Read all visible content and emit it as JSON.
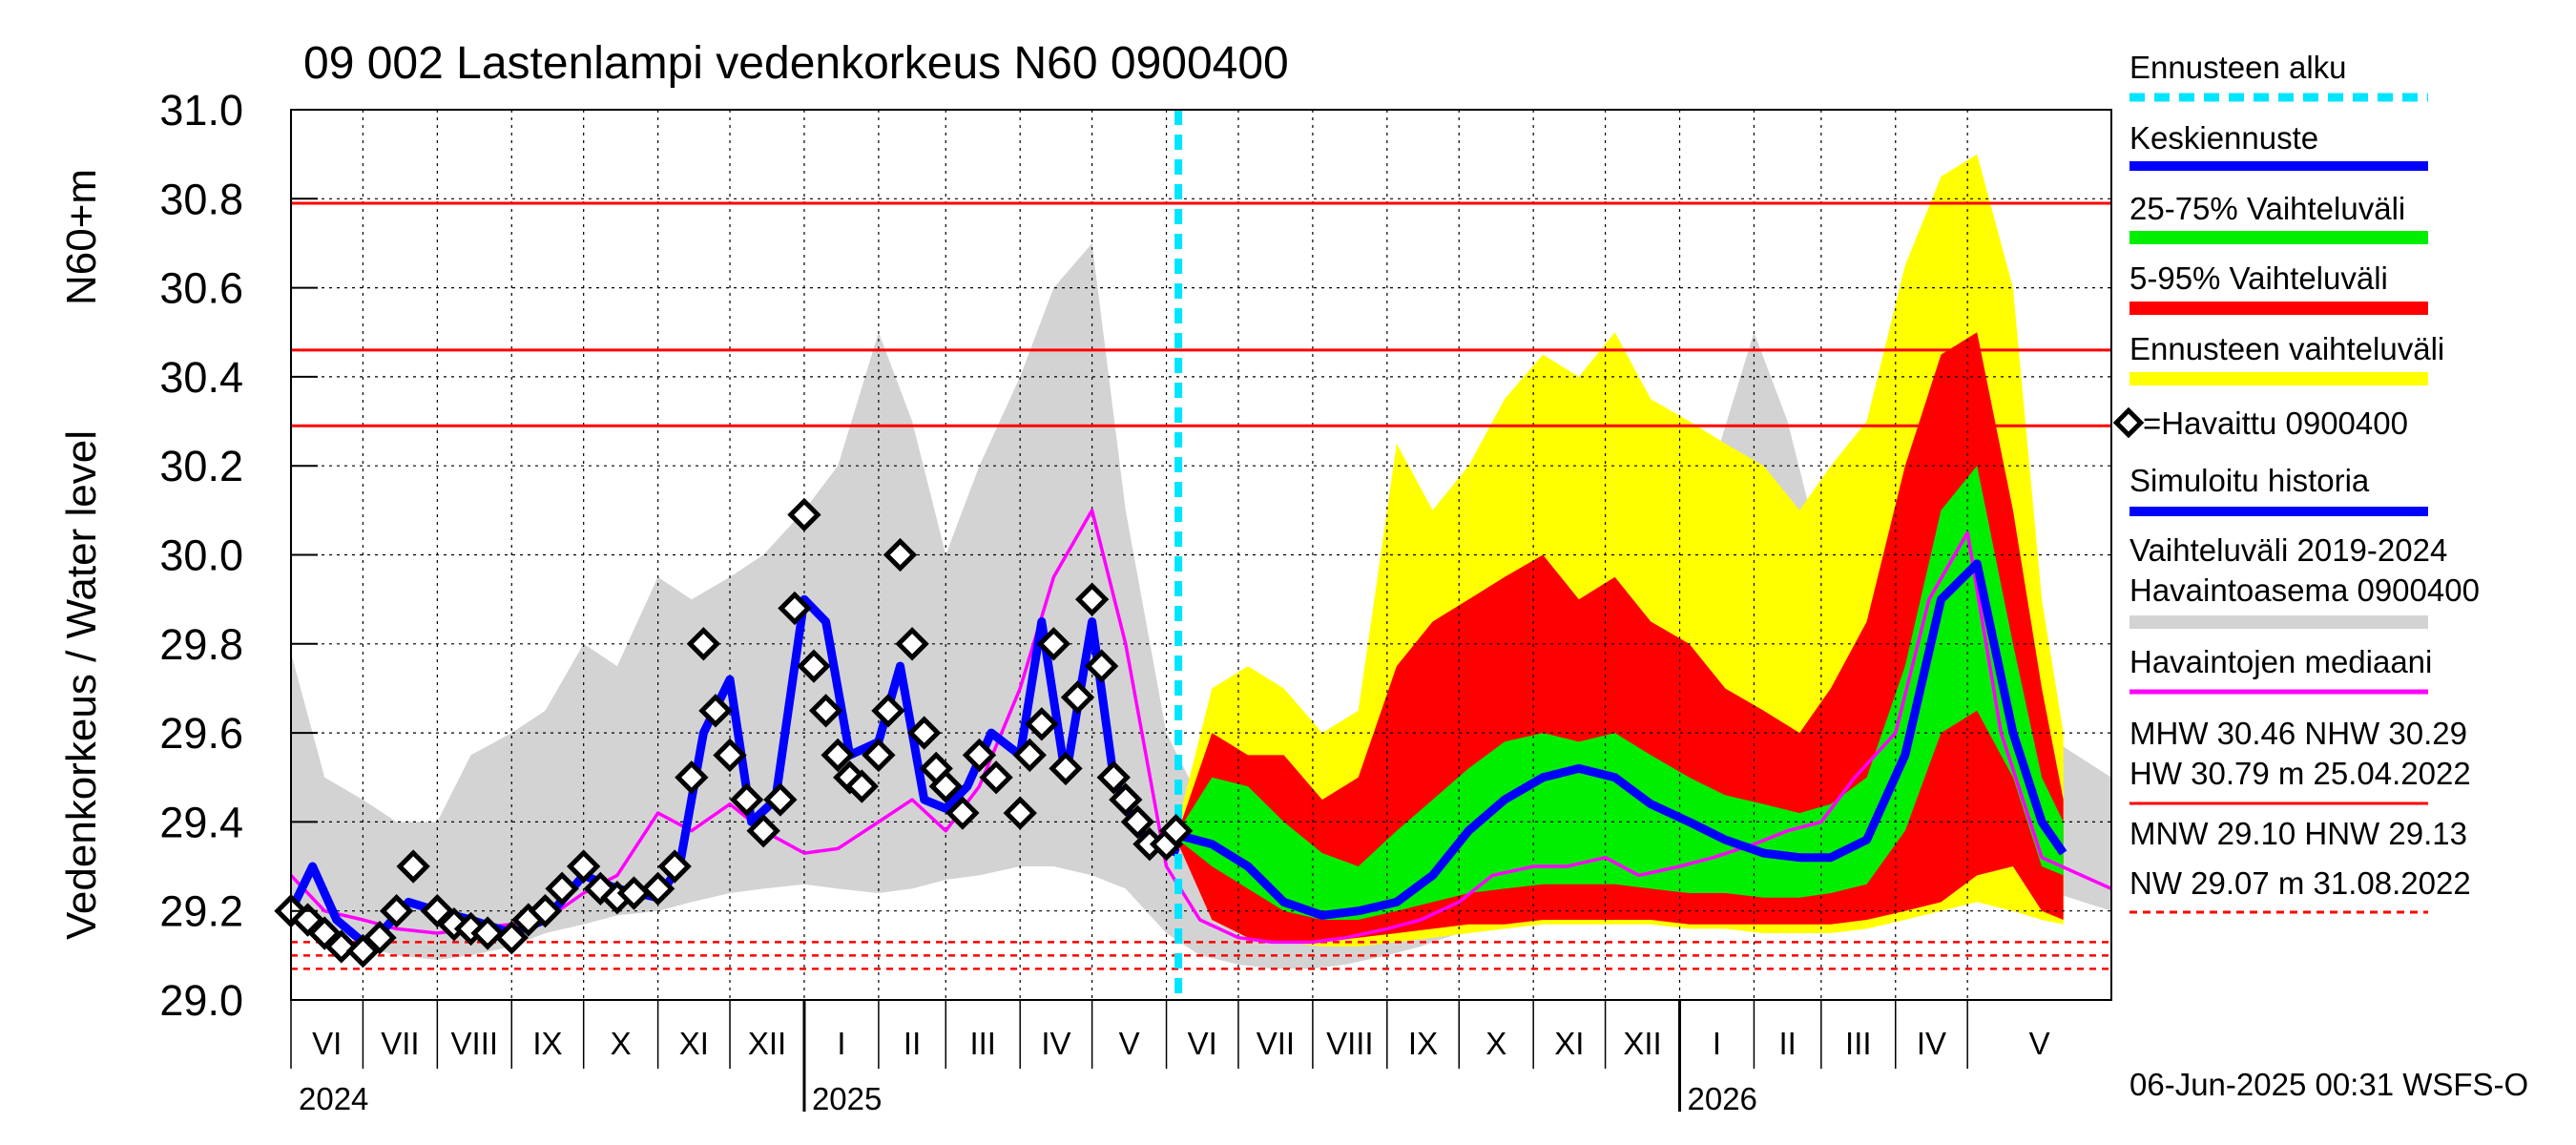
{
  "title": "09 002 Lastenlampi vedenkorkeus N60 0900400",
  "ylabel_left": "Vedenkorkeus / Water level",
  "ylabel_unit": "N60+m",
  "footer": "06-Jun-2025 00:31 WSFS-O",
  "legend": {
    "ennusteen_alku": "Ennusteen alku",
    "keskiennuste": "Keskiennuste",
    "p25_75": "25-75% Vaihteluväli",
    "p5_95": "5-95% Vaihteluväli",
    "ennusteen_vaihteluvali": "Ennusteen vaihteluväli",
    "havaittu": "=Havaittu 0900400",
    "simuloitu": "Simuloitu historia",
    "hist_range_1": "Vaihteluväli 2019-2024",
    "hist_range_2": " Havaintoasema 0900400",
    "median": "Havaintojen mediaani"
  },
  "stats": {
    "line1": "MHW  30.46 NHW  30.29",
    "line2": "HW  30.79 m 25.04.2022",
    "line3": "MNW  29.10 HNW  29.13",
    "line4": "NW  29.07 m 31.08.2022"
  },
  "colors": {
    "observed": "#000000",
    "simulated": "#0000ff",
    "median": "#ff00ff",
    "hist_range": "#d3d3d3",
    "p5_95": "#ff0000",
    "p25_75": "#00ee00",
    "forecast_range": "#ffff00",
    "forecast_start": "#00e5ff",
    "ref_high": "#ff0000",
    "ref_low": "#ff0000"
  },
  "chart_data": {
    "type": "line",
    "title": "09 002 Lastenlampi vedenkorkeus N60 0900400",
    "xlabel": "",
    "ylabel": "Vedenkorkeus / Water level N60+m",
    "x_range": [
      "2024-06-01",
      "2026-06-30"
    ],
    "ylim": [
      29.0,
      31.0
    ],
    "yticks": [
      "29.0",
      "29.2",
      "29.4",
      "29.6",
      "29.8",
      "30.0",
      "30.2",
      "30.4",
      "30.6",
      "30.8",
      "31.0"
    ],
    "grid": true,
    "legend_position": "right",
    "forecast_start": "2025-06-06",
    "months": [
      {
        "label": "VI",
        "start": "2024-06-01"
      },
      {
        "label": "VII",
        "start": "2024-07-01"
      },
      {
        "label": "VIII",
        "start": "2024-08-01"
      },
      {
        "label": "IX",
        "start": "2024-09-01"
      },
      {
        "label": "X",
        "start": "2024-10-01"
      },
      {
        "label": "XI",
        "start": "2024-11-01"
      },
      {
        "label": "XII",
        "start": "2024-12-01"
      },
      {
        "label": "I",
        "start": "2025-01-01"
      },
      {
        "label": "II",
        "start": "2025-02-01"
      },
      {
        "label": "III",
        "start": "2025-03-01"
      },
      {
        "label": "IV",
        "start": "2025-04-01"
      },
      {
        "label": "V",
        "start": "2025-05-01"
      },
      {
        "label": "VI",
        "start": "2025-06-01"
      },
      {
        "label": "VII",
        "start": "2025-07-01"
      },
      {
        "label": "VIII",
        "start": "2025-08-01"
      },
      {
        "label": "IX",
        "start": "2025-09-01"
      },
      {
        "label": "X",
        "start": "2025-10-01"
      },
      {
        "label": "XI",
        "start": "2025-11-01"
      },
      {
        "label": "XII",
        "start": "2025-12-01"
      },
      {
        "label": "I",
        "start": "2026-01-01"
      },
      {
        "label": "II",
        "start": "2026-02-01"
      },
      {
        "label": "III",
        "start": "2026-03-01"
      },
      {
        "label": "IV",
        "start": "2026-04-01"
      },
      {
        "label": "V",
        "start": "2026-05-01"
      }
    ],
    "years": [
      {
        "label": "2024",
        "date": "2024-06-01"
      },
      {
        "label": "2025",
        "date": "2025-01-01"
      },
      {
        "label": "2026",
        "date": "2026-01-01"
      }
    ],
    "reference_lines": [
      {
        "name": "HW",
        "value": 30.79,
        "style": "solid"
      },
      {
        "name": "MHW",
        "value": 30.46,
        "style": "solid"
      },
      {
        "name": "NHW",
        "value": 30.29,
        "style": "solid"
      },
      {
        "name": "HNW",
        "value": 29.13,
        "style": "dashed"
      },
      {
        "name": "MNW",
        "value": 29.1,
        "style": "dashed"
      },
      {
        "name": "NW",
        "value": 29.07,
        "style": "dashed"
      }
    ],
    "series": [
      {
        "name": "Vaihteluväli 2019-2024 Havaintoasema 0900400",
        "kind": "band",
        "x": [
          "2024-06-01",
          "2024-06-15",
          "2024-07-01",
          "2024-07-15",
          "2024-08-01",
          "2024-08-15",
          "2024-09-01",
          "2024-09-15",
          "2024-10-01",
          "2024-10-15",
          "2024-11-01",
          "2024-11-15",
          "2024-12-01",
          "2024-12-15",
          "2025-01-01",
          "2025-01-15",
          "2025-02-01",
          "2025-02-15",
          "2025-03-01",
          "2025-03-15",
          "2025-04-01",
          "2025-04-15",
          "2025-05-01",
          "2025-05-15",
          "2025-06-01",
          "2025-06-15",
          "2025-07-01",
          "2025-07-15",
          "2025-08-01",
          "2025-08-15",
          "2025-09-01",
          "2025-09-15",
          "2025-10-01",
          "2025-10-15",
          "2025-11-01",
          "2025-11-15",
          "2025-12-01",
          "2025-12-15",
          "2026-01-01",
          "2026-01-15",
          "2026-02-01",
          "2026-02-15",
          "2026-03-01",
          "2026-03-15",
          "2026-04-01",
          "2026-04-15",
          "2026-05-01",
          "2026-05-15",
          "2026-06-01",
          "2026-06-30"
        ],
        "lower": [
          29.22,
          29.18,
          29.12,
          29.1,
          29.09,
          29.1,
          29.12,
          29.15,
          29.17,
          29.19,
          29.2,
          29.22,
          29.24,
          29.25,
          29.26,
          29.25,
          29.24,
          29.25,
          29.27,
          29.28,
          29.3,
          29.3,
          29.28,
          29.25,
          29.15,
          29.1,
          29.08,
          29.07,
          29.07,
          29.08,
          29.1,
          29.12,
          29.15,
          29.17,
          29.18,
          29.2,
          29.22,
          29.23,
          29.24,
          29.23,
          29.22,
          29.21,
          29.22,
          29.25,
          29.3,
          29.38,
          29.45,
          29.35,
          29.25,
          29.2
        ],
        "upper": [
          29.78,
          29.5,
          29.45,
          29.4,
          29.4,
          29.55,
          29.6,
          29.65,
          29.8,
          29.75,
          29.95,
          29.9,
          29.95,
          30.0,
          30.1,
          30.2,
          30.5,
          30.3,
          30.0,
          30.2,
          30.4,
          30.6,
          30.7,
          30.1,
          29.6,
          29.45,
          29.4,
          29.35,
          29.4,
          29.5,
          29.55,
          29.6,
          29.8,
          29.75,
          29.95,
          29.9,
          29.95,
          30.0,
          30.1,
          30.2,
          30.5,
          30.3,
          30.0,
          30.2,
          30.4,
          30.6,
          30.7,
          30.1,
          29.6,
          29.5
        ]
      },
      {
        "name": "Ennusteen vaihteluväli",
        "kind": "band",
        "x": [
          "2025-06-06",
          "2025-06-20",
          "2025-07-05",
          "2025-07-20",
          "2025-08-05",
          "2025-08-20",
          "2025-09-05",
          "2025-09-20",
          "2025-10-05",
          "2025-10-20",
          "2025-11-05",
          "2025-11-20",
          "2025-12-05",
          "2025-12-20",
          "2026-01-05",
          "2026-01-20",
          "2026-02-05",
          "2026-02-20",
          "2026-03-05",
          "2026-03-20",
          "2026-04-05",
          "2026-04-20",
          "2026-05-05",
          "2026-05-20",
          "2026-06-01",
          "2026-06-10"
        ],
        "lower": [
          29.35,
          29.2,
          29.15,
          29.13,
          29.12,
          29.12,
          29.13,
          29.14,
          29.15,
          29.16,
          29.17,
          29.17,
          29.17,
          29.17,
          29.16,
          29.16,
          29.15,
          29.15,
          29.15,
          29.16,
          29.18,
          29.2,
          29.22,
          29.2,
          29.18,
          29.17
        ],
        "upper": [
          29.4,
          29.7,
          29.75,
          29.7,
          29.6,
          29.65,
          30.25,
          30.1,
          30.2,
          30.35,
          30.45,
          30.4,
          30.5,
          30.35,
          30.3,
          30.25,
          30.2,
          30.1,
          30.2,
          30.3,
          30.65,
          30.85,
          30.9,
          30.6,
          29.9,
          29.6
        ]
      },
      {
        "name": "5-95% Vaihteluväli",
        "kind": "band",
        "x": [
          "2025-06-06",
          "2025-06-20",
          "2025-07-05",
          "2025-07-20",
          "2025-08-05",
          "2025-08-20",
          "2025-09-05",
          "2025-09-20",
          "2025-10-05",
          "2025-10-20",
          "2025-11-05",
          "2025-11-20",
          "2025-12-05",
          "2025-12-20",
          "2026-01-05",
          "2026-01-20",
          "2026-02-05",
          "2026-02-20",
          "2026-03-05",
          "2026-03-20",
          "2026-04-05",
          "2026-04-20",
          "2026-05-05",
          "2026-05-20",
          "2026-06-01",
          "2026-06-10"
        ],
        "lower": [
          29.35,
          29.18,
          29.14,
          29.13,
          29.13,
          29.14,
          29.15,
          29.16,
          29.17,
          29.17,
          29.18,
          29.18,
          29.18,
          29.18,
          29.17,
          29.17,
          29.17,
          29.17,
          29.17,
          29.18,
          29.2,
          29.22,
          29.28,
          29.3,
          29.2,
          29.18
        ],
        "upper": [
          29.38,
          29.6,
          29.55,
          29.55,
          29.45,
          29.5,
          29.75,
          29.85,
          29.9,
          29.95,
          30.0,
          29.9,
          29.95,
          29.85,
          29.8,
          29.7,
          29.65,
          29.6,
          29.7,
          29.85,
          30.2,
          30.45,
          30.5,
          30.1,
          29.7,
          29.45
        ]
      },
      {
        "name": "25-75% Vaihteluväli",
        "kind": "band",
        "x": [
          "2025-06-06",
          "2025-06-20",
          "2025-07-05",
          "2025-07-20",
          "2025-08-05",
          "2025-08-20",
          "2025-09-05",
          "2025-09-20",
          "2025-10-05",
          "2025-10-20",
          "2025-11-05",
          "2025-11-20",
          "2025-12-05",
          "2025-12-20",
          "2026-01-05",
          "2026-01-20",
          "2026-02-05",
          "2026-02-20",
          "2026-03-05",
          "2026-03-20",
          "2026-04-05",
          "2026-04-20",
          "2026-05-05",
          "2026-05-20",
          "2026-06-01",
          "2026-06-10"
        ],
        "lower": [
          29.36,
          29.3,
          29.25,
          29.2,
          29.18,
          29.18,
          29.2,
          29.22,
          29.24,
          29.25,
          29.26,
          29.26,
          29.26,
          29.25,
          29.24,
          29.24,
          29.23,
          29.23,
          29.24,
          29.26,
          29.38,
          29.6,
          29.65,
          29.5,
          29.3,
          29.28
        ],
        "upper": [
          29.38,
          29.5,
          29.48,
          29.4,
          29.33,
          29.3,
          29.38,
          29.45,
          29.52,
          29.58,
          29.6,
          29.58,
          29.6,
          29.55,
          29.5,
          29.46,
          29.44,
          29.42,
          29.44,
          29.5,
          29.75,
          30.1,
          30.2,
          29.8,
          29.5,
          29.4
        ]
      },
      {
        "name": "Keskiennuste",
        "kind": "line",
        "x": [
          "2025-06-06",
          "2025-06-20",
          "2025-07-05",
          "2025-07-20",
          "2025-08-05",
          "2025-08-20",
          "2025-09-05",
          "2025-09-20",
          "2025-10-05",
          "2025-10-20",
          "2025-11-05",
          "2025-11-20",
          "2025-12-05",
          "2025-12-20",
          "2026-01-05",
          "2026-01-20",
          "2026-02-05",
          "2026-02-20",
          "2026-03-05",
          "2026-03-20",
          "2026-04-05",
          "2026-04-20",
          "2026-05-05",
          "2026-05-20",
          "2026-06-01",
          "2026-06-10"
        ],
        "y": [
          29.37,
          29.35,
          29.3,
          29.22,
          29.19,
          29.2,
          29.22,
          29.28,
          29.38,
          29.45,
          29.5,
          29.52,
          29.5,
          29.44,
          29.4,
          29.36,
          29.33,
          29.32,
          29.32,
          29.36,
          29.55,
          29.9,
          29.98,
          29.6,
          29.4,
          29.33
        ]
      },
      {
        "name": "Havaintojen mediaani",
        "kind": "line",
        "x": [
          "2024-06-01",
          "2024-06-15",
          "2024-07-01",
          "2024-07-15",
          "2024-08-01",
          "2024-08-15",
          "2024-09-01",
          "2024-09-15",
          "2024-10-01",
          "2024-10-15",
          "2024-11-01",
          "2024-11-15",
          "2024-12-01",
          "2024-12-15",
          "2025-01-01",
          "2025-01-15",
          "2025-02-01",
          "2025-02-15",
          "2025-03-01",
          "2025-03-15",
          "2025-04-01",
          "2025-04-15",
          "2025-05-01",
          "2025-05-15",
          "2025-06-01",
          "2025-06-15",
          "2025-07-01",
          "2025-07-15",
          "2025-08-01",
          "2025-08-15",
          "2025-09-01",
          "2025-09-15",
          "2025-10-01",
          "2025-10-15",
          "2025-11-01",
          "2025-11-15",
          "2025-12-01",
          "2025-12-15",
          "2026-01-01",
          "2026-01-15",
          "2026-02-01",
          "2026-02-15",
          "2026-03-01",
          "2026-03-15",
          "2026-04-01",
          "2026-04-15",
          "2026-05-01",
          "2026-05-15",
          "2026-06-01",
          "2026-06-30"
        ],
        "y": [
          29.28,
          29.2,
          29.18,
          29.16,
          29.15,
          29.16,
          29.17,
          29.18,
          29.24,
          29.28,
          29.42,
          29.38,
          29.44,
          29.38,
          29.33,
          29.34,
          29.4,
          29.45,
          29.38,
          29.48,
          29.7,
          29.95,
          30.1,
          29.8,
          29.3,
          29.18,
          29.14,
          29.13,
          29.13,
          29.14,
          29.16,
          29.18,
          29.22,
          29.28,
          29.3,
          29.3,
          29.32,
          29.28,
          29.3,
          29.32,
          29.35,
          29.38,
          29.4,
          29.5,
          29.6,
          29.9,
          30.05,
          29.6,
          29.32,
          29.25
        ]
      },
      {
        "name": "Simuloitu historia",
        "kind": "line",
        "x": [
          "2024-06-01",
          "2024-06-10",
          "2024-06-20",
          "2024-07-01",
          "2024-07-10",
          "2024-07-20",
          "2024-08-01",
          "2024-08-15",
          "2024-09-01",
          "2024-09-15",
          "2024-10-01",
          "2024-10-15",
          "2024-11-01",
          "2024-11-10",
          "2024-11-20",
          "2024-12-01",
          "2024-12-10",
          "2024-12-20",
          "2025-01-01",
          "2025-01-10",
          "2025-01-20",
          "2025-02-01",
          "2025-02-10",
          "2025-02-20",
          "2025-03-01",
          "2025-03-10",
          "2025-03-20",
          "2025-04-01",
          "2025-04-10",
          "2025-04-20",
          "2025-05-01",
          "2025-05-10",
          "2025-05-20",
          "2025-06-01",
          "2025-06-06"
        ],
        "y": [
          29.2,
          29.3,
          29.18,
          29.13,
          29.16,
          29.22,
          29.2,
          29.18,
          29.15,
          29.18,
          29.28,
          29.25,
          29.23,
          29.3,
          29.6,
          29.72,
          29.4,
          29.45,
          29.9,
          29.85,
          29.55,
          29.58,
          29.75,
          29.45,
          29.43,
          29.48,
          29.6,
          29.55,
          29.85,
          29.5,
          29.85,
          29.5,
          29.38,
          29.34,
          29.33
        ]
      },
      {
        "name": "=Havaittu 0900400",
        "kind": "scatter",
        "x": [
          "2024-06-01",
          "2024-06-08",
          "2024-06-15",
          "2024-06-22",
          "2024-07-01",
          "2024-07-08",
          "2024-07-15",
          "2024-07-22",
          "2024-08-01",
          "2024-08-08",
          "2024-08-15",
          "2024-08-22",
          "2024-09-01",
          "2024-09-08",
          "2024-09-15",
          "2024-09-22",
          "2024-10-01",
          "2024-10-08",
          "2024-10-15",
          "2024-10-22",
          "2024-11-01",
          "2024-11-08",
          "2024-11-15",
          "2024-11-20",
          "2024-11-25",
          "2024-12-01",
          "2024-12-08",
          "2024-12-15",
          "2024-12-22",
          "2024-12-28",
          "2025-01-01",
          "2025-01-05",
          "2025-01-10",
          "2025-01-15",
          "2025-01-20",
          "2025-01-25",
          "2025-02-01",
          "2025-02-05",
          "2025-02-10",
          "2025-02-15",
          "2025-02-20",
          "2025-02-25",
          "2025-03-01",
          "2025-03-08",
          "2025-03-15",
          "2025-03-22",
          "2025-04-01",
          "2025-04-05",
          "2025-04-10",
          "2025-04-15",
          "2025-04-20",
          "2025-04-25",
          "2025-05-01",
          "2025-05-05",
          "2025-05-10",
          "2025-05-15",
          "2025-05-20",
          "2025-05-25",
          "2025-06-01",
          "2025-06-05"
        ],
        "y": [
          29.2,
          29.18,
          29.15,
          29.12,
          29.11,
          29.14,
          29.2,
          29.3,
          29.2,
          29.17,
          29.16,
          29.15,
          29.14,
          29.18,
          29.2,
          29.25,
          29.3,
          29.25,
          29.23,
          29.24,
          29.25,
          29.3,
          29.5,
          29.8,
          29.65,
          29.55,
          29.45,
          29.38,
          29.45,
          29.88,
          30.09,
          29.75,
          29.65,
          29.55,
          29.5,
          29.48,
          29.55,
          29.65,
          30.0,
          29.8,
          29.6,
          29.52,
          29.48,
          29.42,
          29.55,
          29.5,
          29.42,
          29.55,
          29.62,
          29.8,
          29.52,
          29.68,
          29.9,
          29.75,
          29.5,
          29.45,
          29.4,
          29.35,
          29.35,
          29.38
        ]
      }
    ]
  }
}
